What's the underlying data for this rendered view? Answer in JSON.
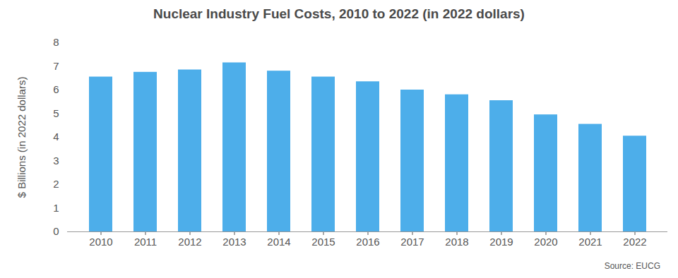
{
  "chart_data": {
    "type": "bar",
    "title": "Nuclear Industry Fuel Costs, 2010 to 2022 (in 2022 dollars)",
    "y_label": "$ Billions (in 2022 dollars)",
    "source": "Source: EUCG",
    "categories": [
      "2010",
      "2011",
      "2012",
      "2013",
      "2014",
      "2015",
      "2016",
      "2017",
      "2018",
      "2019",
      "2020",
      "2021",
      "2022"
    ],
    "values": [
      6.55,
      6.75,
      6.85,
      7.15,
      6.8,
      6.55,
      6.35,
      6.0,
      5.8,
      5.55,
      4.95,
      4.55,
      4.05
    ],
    "color": "#4daeea",
    "ylim": [
      0,
      8
    ],
    "yticks": [
      0,
      1,
      2,
      3,
      4,
      5,
      6,
      7,
      8
    ],
    "grid": false
  }
}
